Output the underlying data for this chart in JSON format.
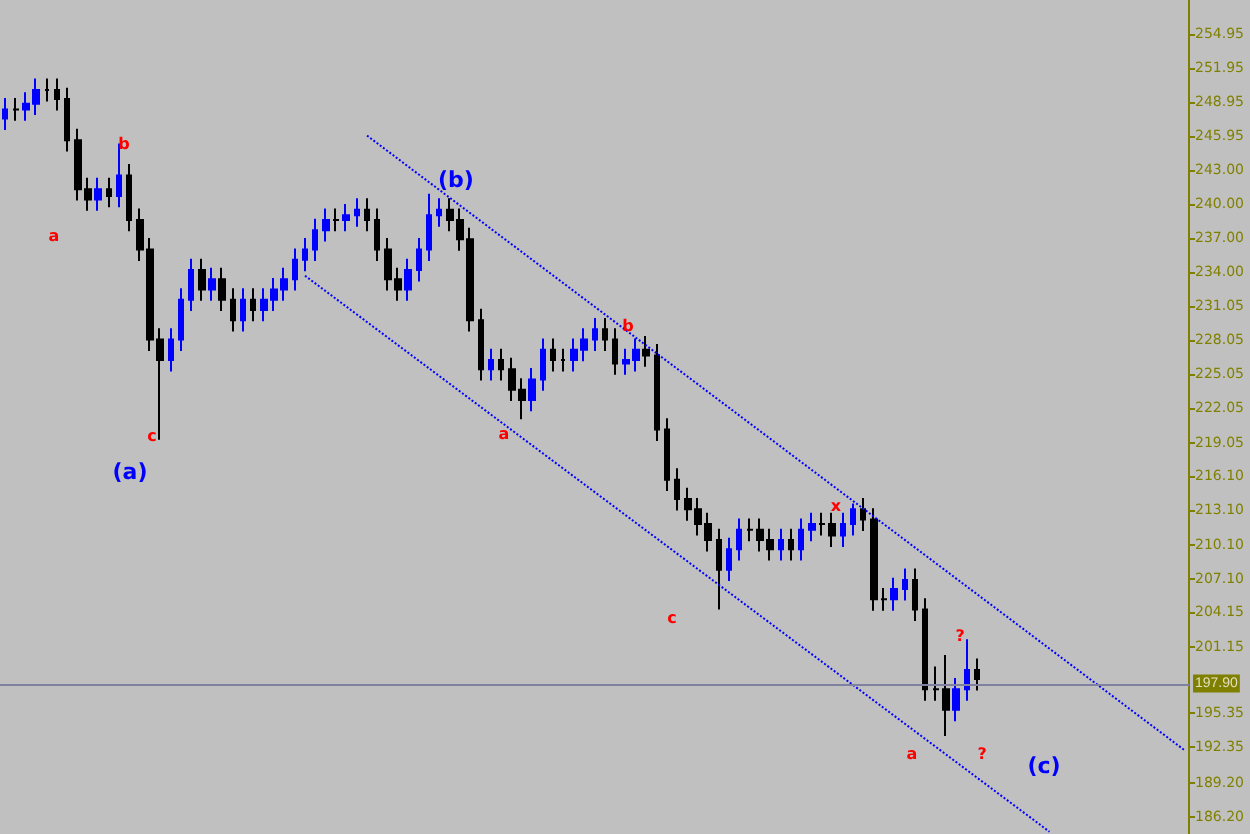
{
  "chart_data": {
    "type": "candlestick",
    "categories": [
      null,
      null,
      null,
      null,
      null,
      null,
      null,
      null,
      null,
      null,
      null,
      null,
      null,
      null,
      null,
      null,
      null,
      null,
      null,
      null,
      null,
      null,
      null,
      null,
      null,
      null,
      null,
      null,
      null,
      null,
      null,
      null,
      null,
      null,
      null,
      null,
      null,
      null,
      null,
      null,
      null,
      null,
      null,
      null,
      null,
      null,
      null,
      null,
      null,
      null,
      null,
      null,
      null,
      null,
      null,
      null,
      null,
      null,
      null,
      null,
      null,
      null,
      null,
      null,
      null,
      null,
      null,
      null,
      null,
      null,
      null,
      null,
      null,
      null,
      null,
      null,
      null,
      null,
      null,
      null,
      null,
      null,
      null,
      null,
      null,
      null,
      null,
      null,
      null,
      null,
      null,
      null,
      null,
      null,
      null,
      null,
      null,
      null,
      null,
      null,
      null,
      null,
      null,
      null,
      null,
      null,
      null,
      null,
      null,
      null,
      null,
      null,
      null,
      null,
      null
    ],
    "ohlc": [
      [
        247.5,
        249.3,
        246.5,
        248.3
      ],
      [
        248.3,
        249.3,
        247.3,
        248.3
      ],
      [
        248.3,
        249.8,
        247.3,
        248.8
      ],
      [
        248.8,
        251.0,
        247.8,
        250.0
      ],
      [
        250.0,
        251.0,
        249.0,
        250.0
      ],
      [
        250.0,
        251.0,
        248.2,
        249.2
      ],
      [
        249.2,
        250.2,
        244.6,
        245.6
      ],
      [
        245.6,
        246.6,
        240.3,
        241.3
      ],
      [
        241.3,
        242.3,
        239.4,
        240.4
      ],
      [
        240.4,
        242.3,
        239.4,
        241.3
      ],
      [
        241.3,
        242.3,
        239.7,
        240.7
      ],
      [
        240.7,
        245.3,
        239.7,
        242.5
      ],
      [
        242.5,
        243.5,
        237.6,
        238.6
      ],
      [
        238.6,
        239.6,
        235.0,
        236.0
      ],
      [
        236.0,
        237.0,
        227.1,
        228.1
      ],
      [
        228.1,
        229.1,
        219.3,
        226.3
      ],
      [
        226.3,
        229.1,
        225.3,
        228.1
      ],
      [
        228.1,
        232.6,
        227.1,
        231.6
      ],
      [
        231.6,
        235.2,
        230.6,
        234.2
      ],
      [
        234.2,
        235.2,
        231.5,
        232.5
      ],
      [
        232.5,
        234.4,
        231.5,
        233.4
      ],
      [
        233.4,
        234.4,
        230.6,
        231.6
      ],
      [
        231.6,
        232.6,
        228.8,
        229.8
      ],
      [
        229.8,
        232.6,
        228.8,
        231.6
      ],
      [
        231.6,
        232.6,
        229.7,
        230.7
      ],
      [
        230.7,
        232.6,
        229.7,
        231.6
      ],
      [
        231.6,
        233.5,
        230.6,
        232.5
      ],
      [
        232.5,
        234.4,
        231.5,
        233.4
      ],
      [
        233.4,
        236.1,
        232.4,
        235.1
      ],
      [
        235.1,
        237.0,
        234.1,
        236.0
      ],
      [
        236.0,
        238.7,
        235.0,
        237.7
      ],
      [
        237.7,
        239.6,
        236.7,
        238.6
      ],
      [
        238.6,
        239.6,
        237.6,
        238.6
      ],
      [
        238.6,
        240.0,
        237.6,
        239.0
      ],
      [
        239.0,
        240.5,
        238.0,
        239.5
      ],
      [
        239.5,
        240.5,
        237.6,
        238.6
      ],
      [
        238.6,
        239.6,
        235.0,
        236.0
      ],
      [
        236.0,
        237.0,
        232.4,
        233.4
      ],
      [
        233.4,
        234.4,
        231.5,
        232.5
      ],
      [
        232.5,
        235.2,
        231.5,
        234.2
      ],
      [
        234.2,
        237.0,
        233.2,
        236.0
      ],
      [
        236.0,
        240.9,
        235.0,
        239.0
      ],
      [
        239.0,
        240.5,
        238.0,
        239.5
      ],
      [
        239.5,
        240.5,
        237.6,
        238.6
      ],
      [
        238.6,
        239.6,
        235.9,
        236.9
      ],
      [
        236.9,
        237.9,
        228.8,
        229.8
      ],
      [
        229.8,
        230.8,
        224.5,
        225.5
      ],
      [
        225.5,
        227.3,
        224.5,
        226.3
      ],
      [
        226.3,
        227.3,
        224.5,
        225.5
      ],
      [
        225.5,
        226.5,
        222.7,
        223.7
      ],
      [
        223.7,
        224.7,
        221.1,
        222.8
      ],
      [
        222.8,
        225.6,
        221.8,
        224.6
      ],
      [
        224.6,
        228.2,
        223.6,
        227.2
      ],
      [
        227.2,
        228.2,
        225.3,
        226.3
      ],
      [
        226.3,
        227.3,
        225.3,
        226.3
      ],
      [
        226.3,
        228.2,
        225.3,
        227.2
      ],
      [
        227.2,
        229.1,
        226.2,
        228.1
      ],
      [
        228.1,
        230.0,
        227.1,
        229.0
      ],
      [
        229.0,
        230.0,
        227.1,
        228.1
      ],
      [
        228.1,
        229.1,
        225.0,
        226.0
      ],
      [
        226.0,
        227.3,
        225.0,
        226.3
      ],
      [
        226.3,
        228.2,
        225.3,
        227.2
      ],
      [
        227.2,
        228.4,
        225.7,
        226.7
      ],
      [
        226.7,
        227.7,
        219.2,
        220.2
      ],
      [
        220.2,
        221.2,
        214.8,
        215.8
      ],
      [
        215.8,
        216.8,
        213.1,
        214.1
      ],
      [
        214.1,
        215.1,
        212.2,
        213.2
      ],
      [
        213.2,
        214.2,
        210.9,
        211.9
      ],
      [
        211.9,
        212.9,
        209.5,
        210.5
      ],
      [
        210.5,
        211.5,
        204.4,
        207.9
      ],
      [
        207.9,
        210.7,
        206.9,
        209.7
      ],
      [
        209.7,
        212.4,
        208.7,
        211.4
      ],
      [
        211.4,
        212.4,
        210.4,
        211.4
      ],
      [
        211.4,
        212.4,
        209.5,
        210.5
      ],
      [
        210.5,
        211.5,
        208.7,
        209.7
      ],
      [
        209.7,
        211.5,
        208.7,
        210.5
      ],
      [
        210.5,
        211.5,
        208.7,
        209.7
      ],
      [
        209.7,
        212.4,
        208.7,
        211.4
      ],
      [
        211.4,
        212.9,
        210.4,
        211.9
      ],
      [
        211.9,
        212.9,
        210.9,
        211.9
      ],
      [
        211.9,
        212.9,
        209.9,
        210.9
      ],
      [
        210.9,
        212.9,
        209.9,
        211.9
      ],
      [
        211.9,
        213.7,
        210.9,
        213.2
      ],
      [
        213.2,
        214.2,
        211.3,
        212.3
      ],
      [
        212.3,
        213.3,
        204.3,
        205.3
      ],
      [
        205.3,
        206.3,
        204.3,
        205.3
      ],
      [
        205.3,
        207.2,
        204.3,
        206.2
      ],
      [
        206.2,
        208.0,
        205.2,
        207.0
      ],
      [
        207.0,
        208.0,
        203.4,
        204.4
      ],
      [
        204.4,
        205.4,
        196.4,
        197.4
      ],
      [
        197.4,
        199.4,
        196.4,
        197.4
      ],
      [
        197.4,
        200.4,
        193.3,
        195.6
      ],
      [
        195.6,
        198.4,
        194.6,
        197.4
      ],
      [
        197.4,
        201.8,
        196.4,
        199.1
      ],
      [
        199.1,
        200.1,
        197.3,
        198.3
      ],
      null,
      null,
      null,
      null,
      null,
      null,
      null,
      null,
      null,
      null,
      null,
      null,
      null,
      null,
      null,
      null,
      null,
      null,
      null,
      null
    ],
    "series": [
      {
        "type": "line",
        "values": [
          null,
          null,
          null,
          null,
          null,
          null,
          null,
          null,
          null,
          null,
          null,
          null,
          null,
          null,
          null,
          null,
          null,
          null,
          null,
          null,
          null,
          null,
          null,
          null,
          null,
          null,
          null,
          null,
          null,
          null,
          null,
          null,
          null,
          null,
          null,
          246.0,
          null,
          null,
          null,
          null,
          null,
          null,
          null,
          null,
          null,
          null,
          null,
          null,
          null,
          null,
          null,
          null,
          null,
          null,
          null,
          null,
          null,
          null,
          null,
          null,
          null,
          null,
          null,
          null,
          null,
          null,
          null,
          null,
          null,
          null,
          null,
          null,
          null,
          null,
          null,
          null,
          null,
          null,
          null,
          null,
          null,
          null,
          null,
          null,
          null,
          null,
          null,
          null,
          null,
          null,
          null,
          null,
          null,
          null,
          null,
          null,
          null,
          null,
          null,
          null,
          null,
          null,
          null,
          null,
          null,
          null,
          null,
          null,
          null,
          null,
          null,
          null,
          null,
          null,
          192.1
        ],
        "color": "#0000ff",
        "line_style": "dotted"
      },
      {
        "type": "line",
        "values": [
          null,
          null,
          null,
          null,
          null,
          null,
          null,
          null,
          null,
          null,
          null,
          null,
          null,
          null,
          null,
          null,
          null,
          null,
          null,
          null,
          null,
          null,
          null,
          null,
          null,
          null,
          null,
          null,
          null,
          233.7,
          null,
          null,
          null,
          null,
          null,
          null,
          null,
          null,
          null,
          null,
          null,
          null,
          null,
          null,
          null,
          null,
          null,
          null,
          null,
          null,
          null,
          null,
          null,
          null,
          null,
          null,
          null,
          null,
          null,
          null,
          null,
          null,
          null,
          null,
          null,
          null,
          null,
          null,
          null,
          null,
          null,
          null,
          null,
          null,
          null,
          null,
          null,
          null,
          null,
          null,
          null,
          null,
          null,
          null,
          null,
          null,
          null,
          null,
          null,
          null,
          null,
          null,
          null,
          null,
          null,
          null,
          null,
          null,
          null,
          null,
          null,
          184.9,
          null,
          null,
          null,
          null,
          null,
          null,
          null,
          null,
          null,
          null,
          null,
          null,
          null
        ],
        "color": "#0000ff",
        "line_style": "dotted"
      }
    ],
    "colors": [
      "#0000ff",
      "#000000",
      "#0000ff",
      "#0000ff",
      "#000000",
      "#000000",
      "#000000",
      "#000000",
      "#000000",
      "#0000ff",
      "#000000",
      "#0000ff",
      "#000000",
      "#000000",
      "#000000",
      "#000000",
      "#0000ff",
      "#0000ff",
      "#0000ff",
      "#000000",
      "#0000ff",
      "#000000",
      "#000000",
      "#0000ff",
      "#000000",
      "#0000ff",
      "#0000ff",
      "#0000ff",
      "#0000ff",
      "#0000ff",
      "#0000ff",
      "#0000ff",
      "#000000",
      "#0000ff",
      "#0000ff",
      "#000000",
      "#000000",
      "#000000",
      "#000000",
      "#0000ff",
      "#0000ff",
      "#0000ff",
      "#0000ff",
      "#000000",
      "#000000",
      "#000000",
      "#000000",
      "#0000ff",
      "#000000",
      "#000000",
      "#000000",
      "#0000ff",
      "#0000ff",
      "#000000",
      "#000000",
      "#0000ff",
      "#0000ff",
      "#0000ff",
      "#000000",
      "#000000",
      "#0000ff",
      "#0000ff",
      "#000000",
      "#000000",
      "#000000",
      "#000000",
      "#000000",
      "#000000",
      "#000000",
      "#000000",
      "#0000ff",
      "#0000ff",
      "#000000",
      "#000000",
      "#000000",
      "#0000ff",
      "#000000",
      "#0000ff",
      "#0000ff",
      "#000000",
      "#000000",
      "#0000ff",
      "#0000ff",
      "#000000",
      "#000000",
      "#000000",
      "#0000ff",
      "#0000ff",
      "#000000",
      "#000000",
      "#000000",
      "#000000",
      "#0000ff",
      "#0000ff",
      "#000000",
      null,
      null,
      null,
      null,
      null,
      null,
      null,
      null,
      null,
      null,
      null,
      null,
      null,
      null,
      null,
      null,
      null,
      null,
      null,
      null
    ],
    "ylim": [
      184.7,
      257.9
    ],
    "yticks": [
      254.95,
      251.95,
      248.95,
      245.95,
      {
        "value": 243,
        "label": "243.00"
      },
      {
        "value": 240,
        "label": "240.00"
      },
      {
        "value": 237,
        "label": "237.00"
      },
      {
        "value": 234,
        "label": "234.00"
      },
      231.05,
      228.05,
      225.05,
      222.05,
      219.05,
      {
        "value": 216.1,
        "label": "216.10"
      },
      {
        "value": 213.1,
        "label": "213.10"
      },
      {
        "value": 210.1,
        "label": "210.10"
      },
      {
        "value": 207.1,
        "label": "207.10"
      },
      204.15,
      201.15,
      195.35,
      192.35,
      {
        "value": 189.2,
        "label": "189.20"
      },
      {
        "value": 186.2,
        "label": "186.20"
      }
    ],
    "ref_lines": [
      {
        "axis": "y",
        "value": 197.9,
        "label": "197.90",
        "color": "#8080a0"
      }
    ],
    "annotations": [
      "a",
      "b",
      "c",
      "(a)",
      "(b)",
      "a",
      "b",
      "c",
      "x",
      "a",
      "?",
      "?",
      "(c)"
    ],
    "tick_labels": "y"
  }
}
